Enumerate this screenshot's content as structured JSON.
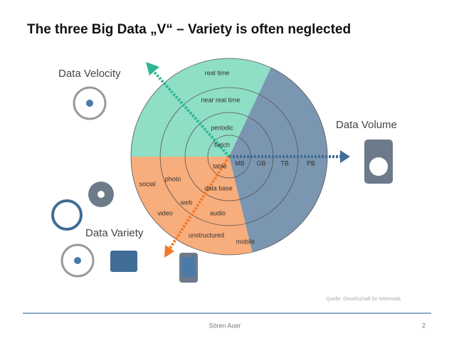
{
  "title": "The three Big Data „V“ – Variety is often neglected",
  "velocity": {
    "label": "Data Velocity",
    "items": [
      "real time",
      "near real time",
      "periodic",
      "batch"
    ]
  },
  "volume": {
    "label": "Data Volume",
    "items": [
      "MB",
      "GB",
      "TB",
      "PB"
    ]
  },
  "variety": {
    "label": "Data Variety",
    "items": [
      "table",
      "data base",
      "photo",
      "social",
      "web",
      "video",
      "audio",
      "unstructured",
      "mobile"
    ]
  },
  "source": "Quelle: Gesellschaft für Informatik",
  "footer": {
    "author": "Sören Auer",
    "page": "2"
  }
}
